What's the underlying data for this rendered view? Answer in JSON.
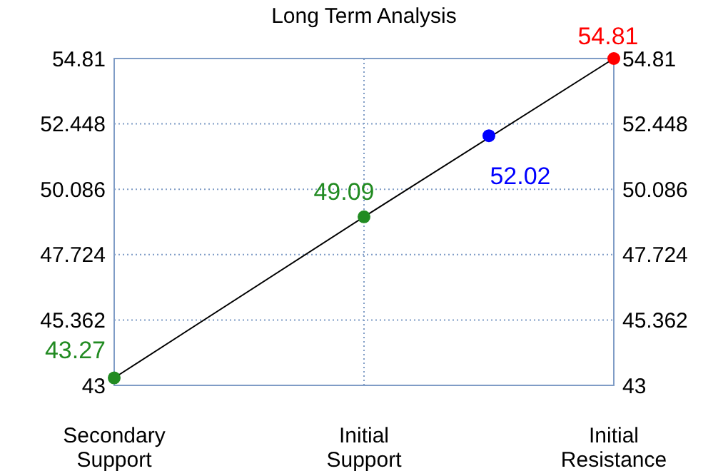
{
  "chart_data": {
    "type": "line",
    "title": "Long Term Analysis",
    "categories": [
      "Secondary Support",
      null,
      "Initial Support",
      null,
      "Initial Resistance"
    ],
    "ylim": [
      43,
      54.81
    ],
    "yticks": [
      43,
      45.362,
      47.724,
      50.086,
      52.448,
      54.81
    ],
    "y2lim": [
      43,
      54.81
    ],
    "y2ticks": [
      43,
      45.362,
      47.724,
      50.086,
      52.448,
      54.81
    ],
    "grid": true,
    "series": [
      {
        "color": "#000000",
        "values": [
          43.27,
          null,
          49.09,
          null,
          54.81
        ],
        "marker": "none"
      },
      {
        "type": "scatter",
        "values": [
          43.27,
          null,
          49.09,
          52.02,
          54.81
        ],
        "colors": [
          "#228b22",
          null,
          "#228b22",
          "#0000ff",
          "#ff0000"
        ],
        "marker": "circle",
        "data_labels": true
      }
    ]
  }
}
